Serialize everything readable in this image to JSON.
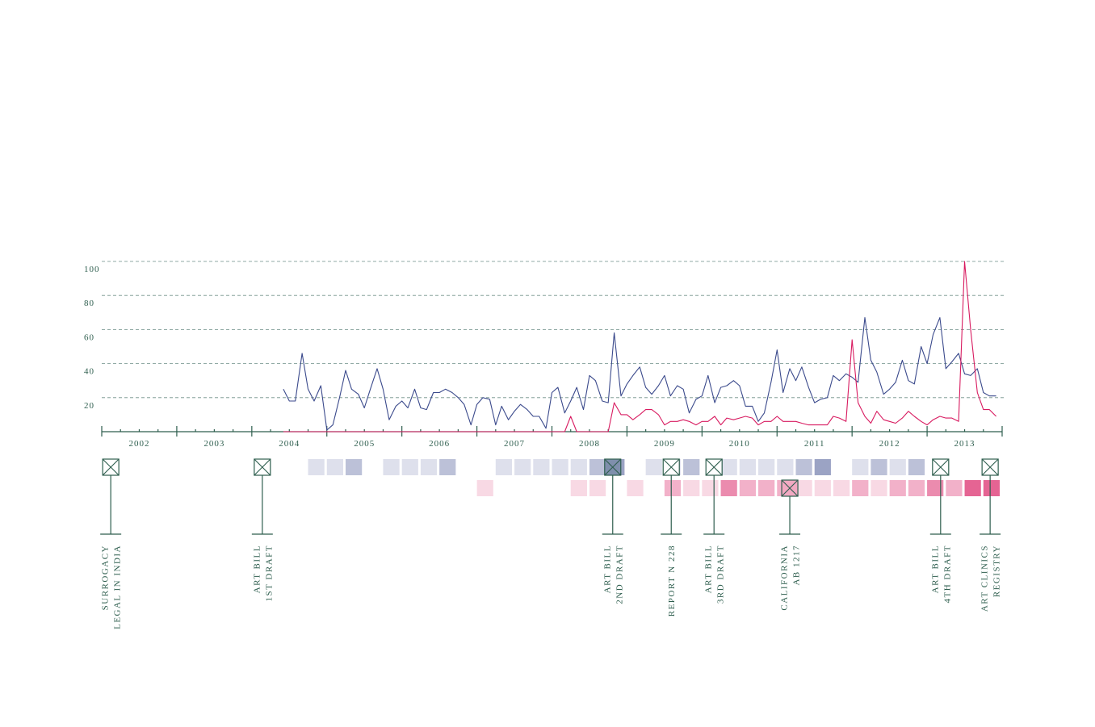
{
  "chart_data": {
    "type": "line",
    "xlim": [
      2002,
      2014
    ],
    "ylim": [
      0,
      100
    ],
    "yticks": [
      20,
      40,
      60,
      80,
      100
    ],
    "xticks": [
      2002,
      2003,
      2004,
      2005,
      2006,
      2007,
      2008,
      2009,
      2010,
      2011,
      2012,
      2013
    ],
    "grid": true,
    "x": [
      2004.42,
      2004.5,
      2004.58,
      2004.67,
      2004.75,
      2004.83,
      2004.92,
      2005,
      2005.08,
      2005.17,
      2005.25,
      2005.33,
      2005.42,
      2005.5,
      2005.58,
      2005.67,
      2005.75,
      2005.83,
      2005.92,
      2006,
      2006.08,
      2006.17,
      2006.25,
      2006.33,
      2006.42,
      2006.5,
      2006.58,
      2006.67,
      2006.75,
      2006.83,
      2006.92,
      2007,
      2007.08,
      2007.17,
      2007.25,
      2007.33,
      2007.42,
      2007.5,
      2007.58,
      2007.67,
      2007.75,
      2007.83,
      2007.92,
      2008,
      2008.08,
      2008.17,
      2008.25,
      2008.33,
      2008.42,
      2008.5,
      2008.58,
      2008.67,
      2008.75,
      2008.83,
      2008.92,
      2009,
      2009.08,
      2009.17,
      2009.25,
      2009.33,
      2009.42,
      2009.5,
      2009.58,
      2009.67,
      2009.75,
      2009.83,
      2009.92,
      2010,
      2010.08,
      2010.17,
      2010.25,
      2010.33,
      2010.42,
      2010.5,
      2010.58,
      2010.67,
      2010.75,
      2010.83,
      2010.92,
      2011,
      2011.08,
      2011.17,
      2011.25,
      2011.33,
      2011.42,
      2011.5,
      2011.58,
      2011.67,
      2011.75,
      2011.83,
      2011.92,
      2012,
      2012.08,
      2012.17,
      2012.25,
      2012.33,
      2012.42,
      2012.5,
      2012.58,
      2012.67,
      2012.75,
      2012.83,
      2012.92,
      2013,
      2013.08,
      2013.17,
      2013.25,
      2013.33,
      2013.42,
      2013.5,
      2013.58,
      2013.67,
      2013.75,
      2013.83,
      2013.92
    ],
    "series": [
      {
        "color": "#3b4a8c",
        "values": [
          25,
          18,
          18,
          46,
          25,
          18,
          27,
          1,
          4,
          20,
          36,
          25,
          22,
          14,
          25,
          37,
          25,
          7,
          15,
          18,
          14,
          25,
          14,
          13,
          23,
          23,
          25,
          23,
          20,
          16,
          4,
          16,
          20,
          19,
          4,
          15,
          7,
          12,
          16,
          13,
          9,
          9,
          2,
          23,
          26,
          11,
          18,
          26,
          13,
          33,
          30,
          18,
          17,
          58,
          21,
          28,
          33,
          38,
          26,
          22,
          27,
          33,
          21,
          27,
          25,
          11,
          19,
          21,
          33,
          17,
          26,
          27,
          30,
          27,
          15,
          15,
          6,
          11,
          29,
          48,
          23,
          37,
          30,
          38,
          26,
          17,
          19,
          20,
          33,
          30,
          34,
          32,
          29,
          67,
          42,
          35,
          22,
          25,
          29,
          42,
          30,
          28,
          50,
          40,
          57,
          67,
          37,
          41,
          46,
          34,
          33,
          37,
          23,
          21,
          21
        ]
      },
      {
        "color": "#d81b60",
        "values": [
          0,
          0,
          0,
          0,
          0,
          0,
          0,
          0,
          0,
          0,
          0,
          0,
          0,
          0,
          0,
          0,
          0,
          0,
          0,
          0,
          0,
          0,
          0,
          0,
          0,
          0,
          0,
          0,
          0,
          0,
          0,
          0,
          0,
          0,
          0,
          0,
          0,
          0,
          0,
          0,
          0,
          0,
          0,
          0,
          0,
          0,
          9,
          0,
          0,
          0,
          0,
          0,
          0,
          17,
          10,
          10,
          7,
          10,
          13,
          13,
          10,
          4,
          6,
          6,
          7,
          6,
          4,
          6,
          6,
          9,
          4,
          8,
          7,
          8,
          9,
          8,
          4,
          6,
          6,
          9,
          6,
          6,
          6,
          5,
          4,
          4,
          4,
          4,
          9,
          8,
          6,
          54,
          17,
          9,
          5,
          12,
          7,
          6,
          5,
          8,
          12,
          9,
          6,
          4,
          7,
          9,
          8,
          8,
          6,
          100,
          60,
          23,
          13,
          13,
          9
        ]
      }
    ],
    "heatmap": {
      "x": [
        2004.5,
        2004.75,
        2005,
        2005.25,
        2005.5,
        2005.75,
        2006,
        2006.25,
        2006.5,
        2006.75,
        2007,
        2007.25,
        2007.5,
        2007.75,
        2008,
        2008.25,
        2008.5,
        2008.75,
        2009,
        2009.25,
        2009.5,
        2009.75,
        2010,
        2010.25,
        2010.5,
        2010.75,
        2011,
        2011.25,
        2011.5,
        2011.75,
        2012,
        2012.25,
        2012.5,
        2012.75,
        2013,
        2013.25,
        2013.5,
        2013.75
      ],
      "rows": [
        {
          "color": "#3b4a8c",
          "values": [
            0,
            1,
            1,
            2,
            0,
            1,
            1,
            1,
            2,
            0,
            0,
            1,
            1,
            1,
            1,
            1,
            2,
            3,
            0,
            1,
            1,
            2,
            0,
            1,
            1,
            1,
            1,
            2,
            3,
            0,
            1,
            2,
            1,
            2,
            0,
            0,
            0,
            0
          ]
        },
        {
          "color": "#d81b60",
          "values": [
            0,
            0,
            0,
            0,
            0,
            0,
            0,
            0,
            0,
            0,
            1,
            0,
            0,
            0,
            0,
            1,
            1,
            0,
            1,
            0,
            2,
            1,
            1,
            3,
            2,
            2,
            2,
            1,
            1,
            1,
            2,
            1,
            2,
            2,
            3,
            2,
            4,
            4
          ]
        }
      ]
    },
    "events": [
      {
        "x": 2002.12,
        "row": 0,
        "fill": "#ffffff",
        "lines": [
          "SURROGACY",
          "LEGAL IN INDIA"
        ]
      },
      {
        "x": 2004.14,
        "row": 0,
        "fill": "#ffffff",
        "lines": [
          "ART BILL",
          "1ST DRAFT"
        ]
      },
      {
        "x": 2008.81,
        "row": 0,
        "fill": "#7f8fac",
        "lines": [
          "ART BILL",
          "2ND DRAFT"
        ]
      },
      {
        "x": 2009.59,
        "row": 0,
        "fill": "#ffffff",
        "lines": [
          "REPORT N 228"
        ]
      },
      {
        "x": 2010.16,
        "row": 0,
        "fill": "#ffffff",
        "lines": [
          "ART BILL",
          "3RD DRAFT"
        ]
      },
      {
        "x": 2011.17,
        "row": 1,
        "fill": "#f2a9c2",
        "lines": [
          "CALIFORNIA",
          "AB 1217"
        ]
      },
      {
        "x": 2013.18,
        "row": 0,
        "fill": "#ffffff",
        "lines": [
          "ART BILL",
          "4TH DRAFT"
        ]
      },
      {
        "x": 2013.84,
        "row": 0,
        "fill": "#ffffff",
        "lines": [
          "ART CLINICS",
          "REGISTRY"
        ]
      }
    ]
  }
}
